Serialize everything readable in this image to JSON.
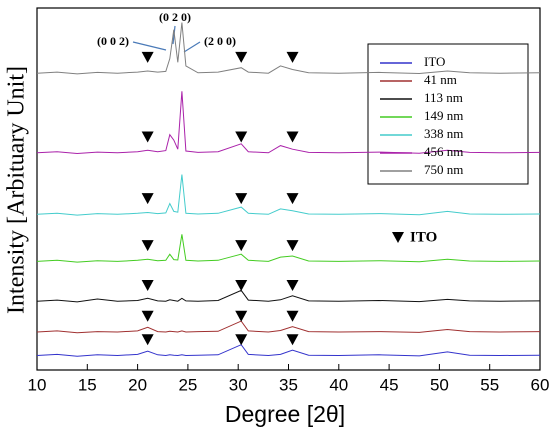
{
  "chart_data": {
    "type": "line",
    "xlabel": "Degree [2θ]",
    "ylabel": "Intensity [Arbituary Unit]",
    "x": [
      10,
      12,
      14,
      16,
      18,
      20,
      21,
      22,
      22.8,
      23.2,
      23.6,
      24.0,
      24.4,
      24.8,
      26,
      28,
      30.3,
      31,
      33,
      34.2,
      35.4,
      37,
      40,
      44,
      48,
      50.8,
      53,
      56,
      60
    ],
    "xlim": [
      10,
      60
    ],
    "xticks": [
      10,
      15,
      20,
      25,
      30,
      35,
      40,
      45,
      50,
      55,
      60
    ],
    "ylim": [
      0,
      100
    ],
    "series": [
      {
        "name": "ITO",
        "color": "#3333cc",
        "values": [
          4,
          4.3,
          3.8,
          4.2,
          4,
          4.3,
          5.2,
          4.2,
          4,
          4.2,
          4.1,
          4,
          4.2,
          4,
          4.1,
          4.2,
          7,
          4.3,
          4,
          4.3,
          5.5,
          4.1,
          4,
          4.2,
          3.9,
          5,
          4.1,
          4,
          4.1
        ]
      },
      {
        "name": "41 nm",
        "color": "#a03030",
        "values": [
          10.5,
          10.8,
          10.3,
          10.6,
          10.5,
          10.8,
          11.8,
          10.6,
          10.5,
          10.7,
          10.6,
          10.5,
          10.8,
          10.5,
          10.6,
          10.7,
          13.5,
          10.8,
          10.5,
          10.9,
          12,
          10.6,
          10.5,
          10.6,
          10.4,
          11.2,
          10.6,
          10.5,
          10.6
        ]
      },
      {
        "name": "113 nm",
        "color": "#111111",
        "values": [
          19,
          19.3,
          18.8,
          19.6,
          19,
          19.2,
          19.8,
          19.1,
          19,
          19.4,
          19.2,
          19,
          19.8,
          19.1,
          19,
          19.2,
          22,
          19.3,
          19,
          19.4,
          20.5,
          19.1,
          19,
          19.2,
          18.9,
          19.5,
          19.1,
          19,
          19.1
        ]
      },
      {
        "name": "149 nm",
        "color": "#44cc22",
        "values": [
          30,
          30.3,
          29.8,
          30.2,
          30,
          30.3,
          30.6,
          30.2,
          30.3,
          32,
          30.5,
          30.4,
          37.5,
          30.3,
          30.1,
          30.3,
          32,
          30.3,
          30,
          31.2,
          31.5,
          30.1,
          30,
          30.2,
          29.9,
          30.6,
          30.1,
          30,
          30.1
        ]
      },
      {
        "name": "338 nm",
        "color": "#44cccc",
        "values": [
          43,
          43.3,
          42.8,
          43.2,
          43,
          43.3,
          43.5,
          43.2,
          43.4,
          46,
          43.8,
          43.6,
          54,
          43.3,
          43.1,
          43.3,
          45,
          43.3,
          43,
          44.5,
          44,
          43.1,
          43,
          43.2,
          42.9,
          43.8,
          43.1,
          43,
          43.1
        ]
      },
      {
        "name": "456 nm",
        "color": "#aa22aa",
        "values": [
          60,
          60.3,
          59.8,
          60.2,
          60,
          60.3,
          60.7,
          60.3,
          60.6,
          65,
          63.5,
          61,
          77,
          60.5,
          60.1,
          60.3,
          62.5,
          60.3,
          60,
          62,
          61,
          60.1,
          60,
          60.2,
          59.9,
          60.7,
          60.1,
          60,
          60.1
        ]
      },
      {
        "name": "750 nm",
        "color": "#808080",
        "values": [
          82,
          82.3,
          81.8,
          82.2,
          82,
          82.3,
          82.6,
          82.3,
          82.5,
          86,
          94,
          85,
          96,
          84,
          82.1,
          82.3,
          83.5,
          82.3,
          82,
          84,
          83,
          82.1,
          82,
          82.2,
          81.9,
          82.6,
          82.1,
          82,
          82.1
        ]
      }
    ],
    "annotations": [
      "(0 0 2)",
      "(0 2 0)",
      "(2 0 0)"
    ],
    "marker_legend": "ITO",
    "marker_positions": [
      21,
      30.3,
      35.4
    ]
  }
}
